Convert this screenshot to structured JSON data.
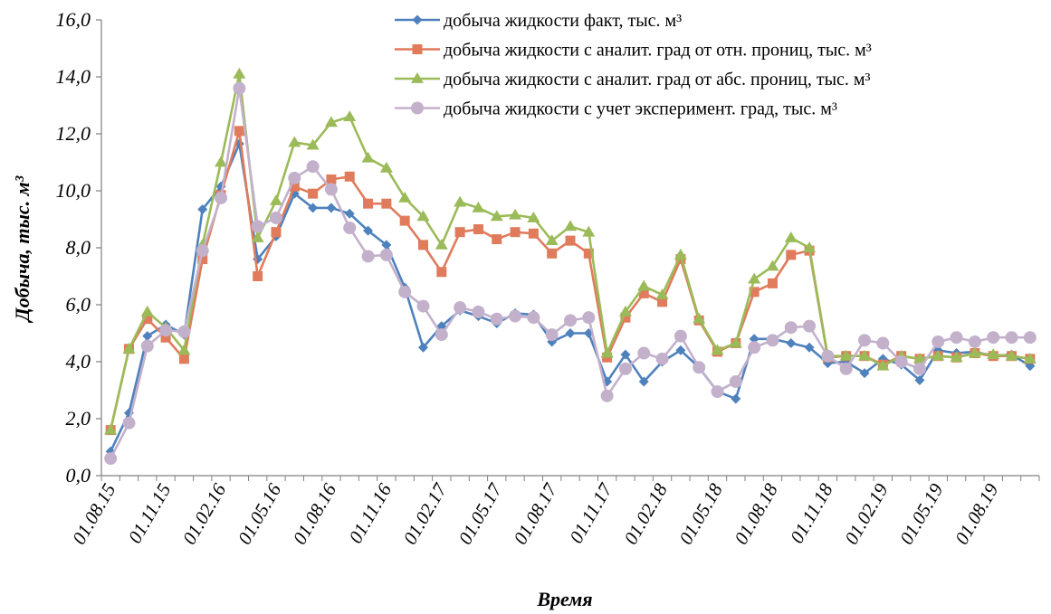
{
  "chart_data": {
    "type": "line",
    "title": "",
    "xlabel": "Время",
    "ylabel": "Добыча, тыс. м³",
    "ylim": [
      0,
      16
    ],
    "yticks": [
      "0,0",
      "2,0",
      "4,0",
      "6,0",
      "8,0",
      "10,0",
      "12,0",
      "14,0",
      "16,0"
    ],
    "x_tick_labels": [
      "01.08.15",
      "01.11.15",
      "01.02.16",
      "01.05.16",
      "01.08.16",
      "01.11.16",
      "01.02.17",
      "01.05.17",
      "01.08.17",
      "01.11.17",
      "01.02.18",
      "01.05.18",
      "01.08.18",
      "01.11.18",
      "01.02.19",
      "01.05.19",
      "01.08.19"
    ],
    "x": [
      "2015-08",
      "2015-09",
      "2015-10",
      "2015-11",
      "2015-12",
      "2016-01",
      "2016-02",
      "2016-03",
      "2016-04",
      "2016-05",
      "2016-06",
      "2016-07",
      "2016-08",
      "2016-09",
      "2016-10",
      "2016-11",
      "2016-12",
      "2017-01",
      "2017-02",
      "2017-03",
      "2017-04",
      "2017-05",
      "2017-06",
      "2017-07",
      "2017-08",
      "2017-09",
      "2017-10",
      "2017-11",
      "2017-12",
      "2018-01",
      "2018-02",
      "2018-03",
      "2018-04",
      "2018-05",
      "2018-06",
      "2018-07",
      "2018-08",
      "2018-09",
      "2018-10",
      "2018-11",
      "2018-12",
      "2019-01",
      "2019-02",
      "2019-03",
      "2019-04",
      "2019-05",
      "2019-06",
      "2019-07",
      "2019-08",
      "2019-09",
      "2019-10"
    ],
    "grid": false,
    "legend_position": "top-right",
    "series": [
      {
        "name": "добыча жидкости факт, тыс. м³",
        "color": "#4f81bd",
        "marker": "diamond",
        "values": [
          0.85,
          2.2,
          4.9,
          5.3,
          4.95,
          9.35,
          10.15,
          11.65,
          7.6,
          8.4,
          9.9,
          9.4,
          9.4,
          9.2,
          8.6,
          8.1,
          6.6,
          4.5,
          5.25,
          5.8,
          5.6,
          5.35,
          5.7,
          5.65,
          4.7,
          5.0,
          5.0,
          3.3,
          4.25,
          3.3,
          4.0,
          4.4,
          3.8,
          2.95,
          2.7,
          4.8,
          4.8,
          4.65,
          4.5,
          3.95,
          4.0,
          3.6,
          4.1,
          3.9,
          3.35,
          4.4,
          4.3,
          4.35,
          4.2,
          4.25,
          3.85
        ]
      },
      {
        "name": "добыча жидкости с аналит. град от отн. прониц, тыс. м³",
        "color": "#e07b5c",
        "marker": "square",
        "values": [
          1.6,
          4.45,
          5.5,
          4.85,
          4.1,
          7.6,
          9.85,
          12.1,
          7.0,
          8.55,
          10.15,
          9.9,
          10.4,
          10.5,
          9.55,
          9.55,
          8.95,
          8.1,
          7.15,
          8.55,
          8.65,
          8.3,
          8.55,
          8.5,
          7.8,
          8.25,
          7.8,
          4.15,
          5.55,
          6.4,
          6.1,
          7.6,
          5.45,
          4.35,
          4.65,
          6.45,
          6.75,
          7.75,
          7.9,
          4.15,
          4.2,
          4.2,
          3.9,
          4.2,
          4.1,
          4.2,
          4.15,
          4.3,
          4.2,
          4.2,
          4.1
        ]
      },
      {
        "name": "добыча жидкости с аналит. град от абс. прониц, тыс. м³",
        "color": "#9bbb59",
        "marker": "triangle",
        "values": [
          1.6,
          4.45,
          5.75,
          5.2,
          4.4,
          8.1,
          11.0,
          14.1,
          8.35,
          9.65,
          11.7,
          11.6,
          12.4,
          12.6,
          11.15,
          10.8,
          9.75,
          9.1,
          8.1,
          9.6,
          9.4,
          9.1,
          9.15,
          9.05,
          8.25,
          8.75,
          8.55,
          4.3,
          5.75,
          6.65,
          6.35,
          7.75,
          5.5,
          4.4,
          4.65,
          6.9,
          7.35,
          8.35,
          8.0,
          4.2,
          4.2,
          4.2,
          3.85,
          4.2,
          4.1,
          4.2,
          4.15,
          4.3,
          4.25,
          4.2,
          4.1
        ]
      },
      {
        "name": "добыча жидкости с учет эксперимент.  град, тыс. м³",
        "color": "#c3b1cc",
        "marker": "circle",
        "values": [
          0.6,
          1.85,
          4.55,
          5.1,
          5.05,
          7.9,
          9.75,
          13.6,
          8.75,
          9.05,
          10.45,
          10.85,
          10.05,
          8.7,
          7.7,
          7.75,
          6.45,
          5.95,
          4.95,
          5.9,
          5.75,
          5.5,
          5.6,
          5.55,
          4.95,
          5.45,
          5.55,
          2.8,
          3.75,
          4.3,
          4.1,
          4.9,
          3.8,
          2.95,
          3.3,
          4.5,
          4.75,
          5.2,
          5.25,
          4.2,
          3.75,
          4.75,
          4.65,
          4.0,
          3.75,
          4.7,
          4.85,
          4.7,
          4.85,
          4.85,
          4.85
        ]
      }
    ]
  }
}
